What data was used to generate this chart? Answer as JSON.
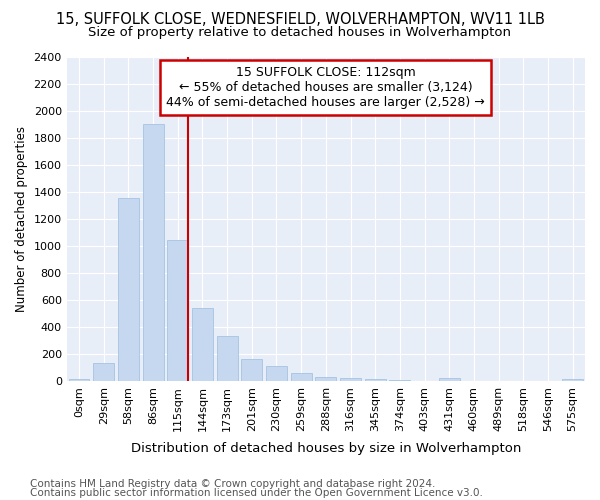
{
  "title1": "15, SUFFOLK CLOSE, WEDNESFIELD, WOLVERHAMPTON, WV11 1LB",
  "title2": "Size of property relative to detached houses in Wolverhampton",
  "xlabel": "Distribution of detached houses by size in Wolverhampton",
  "ylabel": "Number of detached properties",
  "categories": [
    "0sqm",
    "29sqm",
    "58sqm",
    "86sqm",
    "115sqm",
    "144sqm",
    "173sqm",
    "201sqm",
    "230sqm",
    "259sqm",
    "288sqm",
    "316sqm",
    "345sqm",
    "374sqm",
    "403sqm",
    "431sqm",
    "460sqm",
    "489sqm",
    "518sqm",
    "546sqm",
    "575sqm"
  ],
  "values": [
    15,
    130,
    1350,
    1900,
    1040,
    540,
    335,
    165,
    110,
    55,
    30,
    25,
    15,
    5,
    0,
    20,
    0,
    0,
    0,
    0,
    15
  ],
  "bar_color": "#c5d8f0",
  "bar_edge_color": "#9bbde0",
  "property_line_index": 4,
  "property_line_color": "#cc0000",
  "annotation_line1": "15 SUFFOLK CLOSE: 112sqm",
  "annotation_line2": "← 55% of detached houses are smaller (3,124)",
  "annotation_line3": "44% of semi-detached houses are larger (2,528) →",
  "annotation_box_color": "#ffffff",
  "annotation_box_edge_color": "#cc0000",
  "ylim": [
    0,
    2400
  ],
  "yticks": [
    0,
    200,
    400,
    600,
    800,
    1000,
    1200,
    1400,
    1600,
    1800,
    2000,
    2200,
    2400
  ],
  "footnote1": "Contains HM Land Registry data © Crown copyright and database right 2024.",
  "footnote2": "Contains public sector information licensed under the Open Government Licence v3.0.",
  "bg_color": "#ffffff",
  "plot_bg_color": "#e8eef8",
  "grid_color": "#ffffff",
  "title1_fontsize": 10.5,
  "title2_fontsize": 9.5,
  "xlabel_fontsize": 9.5,
  "ylabel_fontsize": 8.5,
  "tick_fontsize": 8,
  "footnote_fontsize": 7.5,
  "annotation_fontsize": 9
}
